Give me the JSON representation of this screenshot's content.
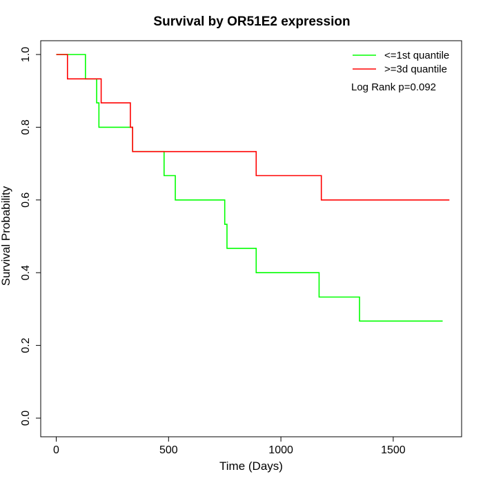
{
  "chart_data": {
    "type": "line",
    "title": "Survival by OR51E2 expression",
    "xlabel": "Time (Days)",
    "ylabel": "Survival Probability",
    "xlim": [
      0,
      1800
    ],
    "ylim": [
      0,
      1.0
    ],
    "x_ticks": [
      0,
      500,
      1000,
      1500
    ],
    "x_tick_labels": [
      "0",
      "500",
      "1000",
      "1500"
    ],
    "y_ticks": [
      0.0,
      0.2,
      0.4,
      0.6,
      0.8,
      1.0
    ],
    "y_tick_labels": [
      "0.0",
      "0.2",
      "0.4",
      "0.6",
      "0.8",
      "1.0"
    ],
    "grid": false,
    "legend_position": "top-right",
    "annotation": "Log Rank p=0.092",
    "series": [
      {
        "name": "<=1st quantile",
        "color": "#00ff00",
        "step": true,
        "x": [
          0,
          130,
          180,
          190,
          330,
          340,
          480,
          530,
          750,
          760,
          890,
          1170,
          1350,
          1720
        ],
        "y": [
          1.0,
          0.933,
          0.867,
          0.8,
          0.8,
          0.733,
          0.667,
          0.6,
          0.533,
          0.467,
          0.4,
          0.333,
          0.267,
          0.267
        ]
      },
      {
        "name": ">=3d quantile",
        "color": "#ff0000",
        "step": true,
        "x": [
          0,
          50,
          200,
          330,
          340,
          890,
          1180,
          1750
        ],
        "y": [
          1.0,
          0.933,
          0.867,
          0.8,
          0.733,
          0.667,
          0.6,
          0.6
        ]
      }
    ]
  }
}
